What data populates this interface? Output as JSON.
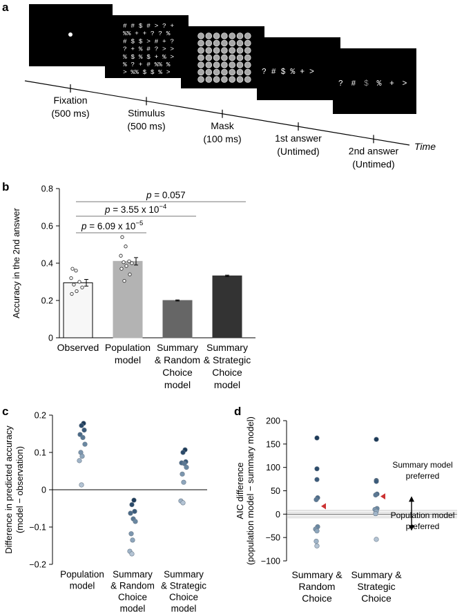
{
  "panel_a": {
    "letter": "a",
    "time_label": "Time",
    "screens": [
      {
        "name": "fixation",
        "lines": []
      },
      {
        "name": "stimulus",
        "lines": [
          "# # $ # > ? +",
          "%% + + ? ? %",
          "# $ $ > # + ?",
          "? + % # ? > >",
          "% $ % $ + % >",
          "% ? + # %% %",
          "> %% $ $ % >"
        ]
      },
      {
        "name": "mask",
        "lines": []
      },
      {
        "name": "first-answer",
        "lines": [
          "? # $ % + >"
        ]
      },
      {
        "name": "second-answer",
        "lines": [
          "? # $ % + >"
        ],
        "gray_symbol": "$"
      }
    ],
    "steps": [
      {
        "line1": "Fixation",
        "line2": "(500 ms)"
      },
      {
        "line1": "Stimulus",
        "line2": "(500 ms)"
      },
      {
        "line1": "Mask",
        "line2": "(100 ms)"
      },
      {
        "line1": "1st answer",
        "line2": "(Untimed)"
      },
      {
        "line1": "2nd answer",
        "line2": "(Untimed)"
      }
    ]
  },
  "chart_data": [
    {
      "panel": "b",
      "type": "bar",
      "ylabel": "Accuracy in the 2nd answer",
      "ylim": [
        0,
        0.8
      ],
      "yticks": [
        0,
        0.2,
        0.4,
        0.6,
        0.8
      ],
      "categories": [
        [
          "Observed"
        ],
        [
          "Population",
          "model"
        ],
        [
          "Summary",
          "& Random",
          "Choice",
          "model"
        ],
        [
          "Summary",
          "& Strategic",
          "Choice",
          "model"
        ]
      ],
      "values": [
        0.295,
        0.41,
        0.2,
        0.332
      ],
      "errors": [
        0.018,
        0.02,
        0.003,
        0.004
      ],
      "bar_colors": [
        "#f7f7f7",
        "#b3b3b3",
        "#666666",
        "#333333"
      ],
      "points": [
        [
          0.37,
          0.36,
          0.32,
          0.3,
          0.285,
          0.27,
          0.25,
          0.235
        ],
        [
          0.54,
          0.49,
          0.44,
          0.41,
          0.405,
          0.4,
          0.385,
          0.37,
          0.34,
          0.305
        ],
        [],
        []
      ],
      "comparisons": [
        {
          "label": "p = 6.09 x 10",
          "exponent": "−5",
          "from": 0,
          "to": 1
        },
        {
          "label": "p = 3.55 x 10",
          "exponent": "−4",
          "from": 0,
          "to": 2
        },
        {
          "label": "p = 0.057",
          "exponent": "",
          "from": 0,
          "to": 3
        }
      ]
    },
    {
      "panel": "c",
      "type": "scatter",
      "ylabel": [
        "Difference in predicted accuracy",
        "(model − observation)"
      ],
      "ylim": [
        -0.2,
        0.2
      ],
      "yticks": [
        -0.2,
        -0.1,
        0,
        0.1,
        0.2
      ],
      "categories": [
        [
          "Population",
          "model"
        ],
        [
          "Summary",
          "& Random",
          "Choice",
          "model"
        ],
        [
          "Summary",
          "& Strategic",
          "Choice",
          "model"
        ]
      ],
      "series": [
        {
          "name": "Population model",
          "values": [
            0.178,
            0.172,
            0.16,
            0.148,
            0.14,
            0.122,
            0.1,
            0.09,
            0.078,
            0.013
          ]
        },
        {
          "name": "Summary & Random Choice model",
          "values": [
            -0.028,
            -0.04,
            -0.058,
            -0.063,
            -0.078,
            -0.085,
            -0.118,
            -0.135,
            -0.165,
            -0.172
          ]
        },
        {
          "name": "Summary & Strategic Choice model",
          "values": [
            0.107,
            0.1,
            0.075,
            0.072,
            0.07,
            0.06,
            0.042,
            0.02,
            -0.03,
            -0.035
          ]
        }
      ],
      "point_colors": [
        "#1c3a58",
        "#2a4a6a",
        "#3a5a7a",
        "#4a6a88",
        "#5a7894",
        "#6a88a2",
        "#7c96ae",
        "#8ea6bc",
        "#a0b4c8",
        "#b4c4d4"
      ]
    },
    {
      "panel": "d",
      "type": "scatter",
      "ylabel": [
        "AIC difference",
        "(population model − summary model)"
      ],
      "ylim": [
        -100,
        200
      ],
      "yticks": [
        -100,
        -50,
        0,
        50,
        100,
        150,
        200
      ],
      "categories": [
        [
          "Summary &",
          "Random",
          "Choice"
        ],
        [
          "Summary &",
          "Strategic",
          "Choice"
        ]
      ],
      "series": [
        {
          "name": "Summary & Random Choice",
          "values": [
            163,
            97,
            74,
            35,
            31,
            -27,
            -32,
            -36,
            -58,
            -68
          ],
          "triangle": 17
        },
        {
          "name": "Summary & Strategic Choice",
          "values": [
            160,
            72,
            70,
            43,
            41,
            12,
            10,
            6,
            1,
            -54
          ],
          "triangle": 38
        }
      ],
      "reference_lines": [
        8,
        4,
        0,
        -4,
        -8
      ],
      "annotations": {
        "top": [
          "Summary model",
          "preferred"
        ],
        "bottom": [
          "Population model",
          "preferred"
        ]
      }
    }
  ]
}
